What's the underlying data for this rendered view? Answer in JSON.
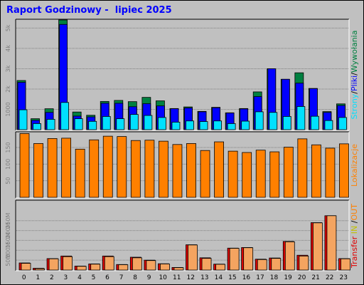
{
  "title": "Raport Godzinowy -  lipiec 2025",
  "right_labels": {
    "top": [
      "Strony",
      "/",
      "Pliki",
      "/",
      "Wywołania"
    ],
    "middle": "Lokalizacje",
    "bottom": [
      "Transfer",
      " IN ",
      "/",
      "OUT"
    ]
  },
  "colors": {
    "title": "#0000ff",
    "strony": "#00e0ff",
    "pliki": "#0000ff",
    "wywolania": "#008040",
    "lokalizacje": "#ff8000",
    "transfer_in": "#e00000",
    "transfer_out": "#f4a460",
    "in_label": "#c0c000"
  },
  "chart_data": [
    {
      "type": "bar",
      "name": "hits",
      "categories": [
        "0",
        "1",
        "2",
        "3",
        "4",
        "5",
        "6",
        "7",
        "8",
        "9",
        "10",
        "11",
        "12",
        "13",
        "14",
        "15",
        "16",
        "17",
        "18",
        "19",
        "20",
        "21",
        "22",
        "23"
      ],
      "y_ticks": [
        "1000",
        "2k",
        "3k",
        "4k",
        "5k"
      ],
      "y_tick_values": [
        1000,
        2000,
        3000,
        4000,
        5000
      ],
      "ylim": [
        0,
        5400
      ],
      "series": [
        {
          "name": "Wywołania",
          "values": [
            2420,
            540,
            1030,
            5400,
            870,
            710,
            1390,
            1440,
            1380,
            1590,
            1420,
            1040,
            1120,
            900,
            1100,
            830,
            1040,
            1860,
            3000,
            2480,
            2800,
            2030,
            890,
            1270
          ]
        },
        {
          "name": "Pliki",
          "values": [
            2330,
            460,
            850,
            5180,
            670,
            630,
            1300,
            1300,
            1130,
            1280,
            1170,
            1030,
            1070,
            880,
            1080,
            820,
            1020,
            1630,
            3000,
            2480,
            2290,
            2020,
            850,
            1190
          ]
        },
        {
          "name": "Strony",
          "values": [
            980,
            300,
            510,
            1340,
            540,
            410,
            650,
            540,
            750,
            700,
            600,
            370,
            430,
            400,
            430,
            300,
            420,
            880,
            850,
            650,
            1140,
            660,
            450,
            600
          ]
        }
      ]
    },
    {
      "type": "bar",
      "name": "locations",
      "categories": [
        "0",
        "1",
        "2",
        "3",
        "4",
        "5",
        "6",
        "7",
        "8",
        "9",
        "10",
        "11",
        "12",
        "13",
        "14",
        "15",
        "16",
        "17",
        "18",
        "19",
        "20",
        "21",
        "22",
        "23"
      ],
      "y_ticks": [
        "50",
        "100",
        "150"
      ],
      "y_tick_values": [
        50,
        100,
        150
      ],
      "ylim": [
        0,
        195
      ],
      "series": [
        {
          "name": "Lokalizacje",
          "values": [
            192,
            162,
            177,
            178,
            145,
            173,
            184,
            183,
            171,
            172,
            169,
            159,
            162,
            141,
            167,
            139,
            135,
            142,
            137,
            151,
            176,
            158,
            148,
            161
          ]
        }
      ]
    },
    {
      "type": "bar",
      "name": "transfer",
      "categories": [
        "0",
        "1",
        "2",
        "3",
        "4",
        "5",
        "6",
        "7",
        "8",
        "9",
        "10",
        "11",
        "12",
        "13",
        "14",
        "15",
        "16",
        "17",
        "18",
        "19",
        "20",
        "21",
        "22",
        "23"
      ],
      "y_ticks": [
        "50M",
        "100M",
        "150M",
        "200M",
        "250M",
        "350M"
      ],
      "y_tick_values": [
        50,
        100,
        150,
        200,
        250,
        350
      ],
      "ylim": [
        0,
        350
      ],
      "series": [
        {
          "name": "IN",
          "values": [
            36,
            9,
            58,
            71,
            20,
            31,
            71,
            28,
            65,
            50,
            32,
            13,
            128,
            62,
            30,
            111,
            114,
            55,
            61,
            145,
            75,
            240,
            275,
            58
          ]
        },
        {
          "name": "OUT",
          "values": [
            34,
            7,
            57,
            68,
            19,
            30,
            68,
            27,
            62,
            48,
            31,
            12,
            127,
            59,
            29,
            110,
            113,
            53,
            59,
            143,
            71,
            239,
            275,
            57
          ]
        }
      ]
    }
  ]
}
